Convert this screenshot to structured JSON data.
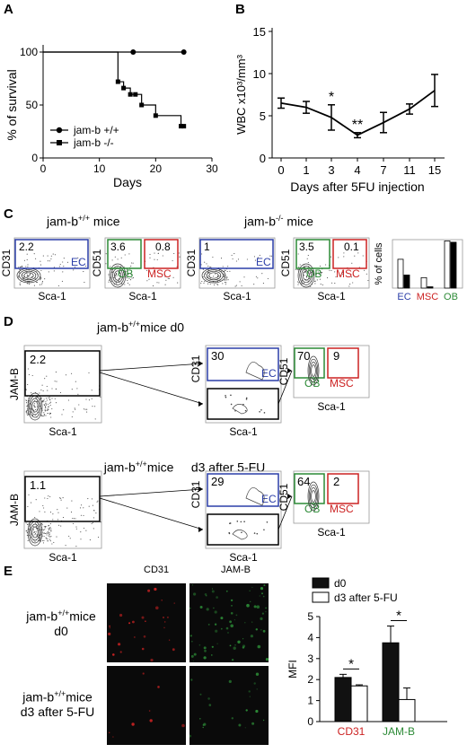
{
  "panels": {
    "a": "A",
    "b": "B",
    "c": "C",
    "d": "D",
    "e": "E"
  },
  "colors": {
    "ec": "#2b3ea8",
    "msc": "#cc2222",
    "ob": "#2c8a36",
    "cd31": "#cc2222",
    "jamb": "#2c8a36"
  },
  "chart_data": [
    {
      "type": "line",
      "panel": "A",
      "xlabel": "Days",
      "ylabel": "% of survival",
      "xlim": [
        0,
        30
      ],
      "ylim": [
        0,
        100
      ],
      "xticks": [
        "0",
        "10",
        "20",
        "30"
      ],
      "yticks": [
        "0",
        "50",
        "100"
      ],
      "series": [
        {
          "name": "jam-b +/+",
          "marker": "circle",
          "x": [
            0,
            16,
            25
          ],
          "y": [
            100,
            100,
            100
          ]
        },
        {
          "name": "jam-b -/-",
          "marker": "square",
          "x": [
            0,
            12.8,
            13.3,
            14.3,
            15.5,
            16.4,
            17.5,
            20,
            24.5,
            25
          ],
          "y": [
            100,
            100,
            72,
            66,
            60,
            60,
            50,
            40,
            30,
            30
          ]
        }
      ]
    },
    {
      "type": "line",
      "panel": "B",
      "xlabel": "Days after 5FU injection",
      "ylabel": "WBC x10³/mm³",
      "ylim": [
        0,
        15
      ],
      "yticks": [
        "0",
        "5",
        "10",
        "15"
      ],
      "categories": [
        "0",
        "1",
        "3",
        "4",
        "7",
        "11",
        "15"
      ],
      "values": [
        6.5,
        6.0,
        4.8,
        2.7,
        4.2,
        5.8,
        8.0
      ],
      "errors": [
        0.6,
        0.7,
        1.5,
        0.3,
        1.2,
        0.6,
        1.9
      ],
      "annotations": {
        "3": "*",
        "4": "**"
      }
    },
    {
      "type": "bar",
      "panel": "C",
      "ylabel": "% of cells",
      "categories": [
        "EC",
        "MSC",
        "OB"
      ],
      "series": [
        {
          "fill": "white",
          "values": [
            2.2,
            0.8,
            3.6
          ]
        },
        {
          "fill": "black",
          "values": [
            1.0,
            0.1,
            3.5
          ]
        }
      ]
    },
    {
      "type": "bar",
      "panel": "E",
      "ylabel": "MFI",
      "ylim": [
        0,
        5
      ],
      "yticks": [
        "0",
        "1",
        "2",
        "3",
        "4",
        "5"
      ],
      "categories": [
        "CD31",
        "JAM-B"
      ],
      "series": [
        {
          "name": "d0",
          "values": [
            2.1,
            3.75
          ],
          "errors": [
            0.15,
            0.8
          ]
        },
        {
          "name": "d3 after 5-FU",
          "values": [
            1.7,
            1.05
          ],
          "errors": [
            0.05,
            0.55
          ]
        }
      ],
      "annotations": [
        "*",
        "*"
      ]
    }
  ],
  "panel_c": {
    "title_wt": "jam-b",
    "sup_wt": "+/+",
    "mice_wt": " mice",
    "title_ko": "jam-b",
    "sup_ko": "-/-",
    "mice_ko": " mice",
    "cd31": "CD31",
    "cd51": "CD51",
    "sca1": "Sca-1",
    "wt_ec_val": "2.2",
    "wt_ob_val": "3.6",
    "wt_msc_val": "0.8",
    "ko_ec_val": "1",
    "ko_ob_val": "3.5",
    "ko_msc_val": "0.1",
    "ec": "EC",
    "ob": "OB",
    "msc": "MSC"
  },
  "panel_d": {
    "row1_title": "jam-b",
    "row1_sup": "+/+",
    "row1_suffix": "mice d0",
    "row2_title": "jam-b",
    "row2_sup": "+/+",
    "row2_suffix": "mice     d3 after 5-FU",
    "jamb": "JAM-B",
    "cd31": "CD31",
    "cd51": "CD51",
    "sca1": "Sca-1",
    "r1_gate": "2.2",
    "r1_ec": "30",
    "r1_ob": "70",
    "r1_msc": "9",
    "r2_gate": "1.1",
    "r2_ec": "29",
    "r2_ob": "64",
    "r2_msc": "2",
    "ec": "EC",
    "ob": "OB",
    "msc": "MSC"
  },
  "panel_e": {
    "cd31_title": "CD31",
    "jamb_title": "JAM-B",
    "row1_a": "jam-b",
    "row1_sup": "+/+",
    "row1_b": "mice",
    "row1_c": "d0",
    "row2_a": "jam-b",
    "row2_sup": "+/+",
    "row2_b": "mice",
    "row2_c": "d3 after 5-FU"
  }
}
